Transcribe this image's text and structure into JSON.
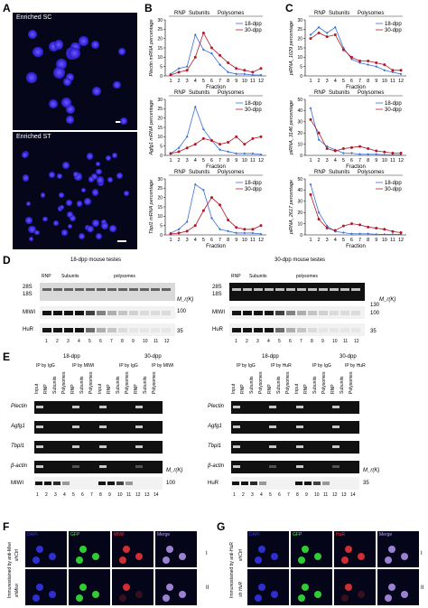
{
  "panels": {
    "A": "A",
    "B": "B",
    "C": "C",
    "D": "D",
    "E": "E",
    "F": "F",
    "G": "G"
  },
  "panelA": {
    "top_label": "Enriched SC",
    "bottom_label": "Enriched ST"
  },
  "legend": {
    "s1": "18-dpp",
    "s2": "30-dpp",
    "c1": "#3a6fd8",
    "c2": "#b0192a"
  },
  "header": {
    "rnp": "RNP",
    "subunits": "Subunits",
    "polysomes": "Polysomes"
  },
  "chart_data": [
    {
      "type": "line",
      "id": "plectin",
      "ylabel": "Plectin mRNA percentage",
      "xlabel": "Fraction",
      "categories": [
        1,
        2,
        3,
        4,
        5,
        6,
        7,
        8,
        9,
        10,
        11,
        12
      ],
      "ylim": [
        0,
        30
      ],
      "yticks": [
        0,
        5,
        10,
        15,
        20,
        25,
        30
      ],
      "series": [
        {
          "name": "18-dpp",
          "values": [
            1,
            4,
            5,
            22,
            14,
            12,
            6,
            2,
            1,
            1,
            0.5,
            0.5
          ]
        },
        {
          "name": "30-dpp",
          "values": [
            0.5,
            2,
            3,
            10,
            23,
            15,
            11,
            7,
            4,
            3,
            2,
            4
          ]
        }
      ]
    },
    {
      "type": "line",
      "id": "agfg1",
      "ylabel": "Agfg1 mRNA percentage",
      "xlabel": "Fraction",
      "categories": [
        1,
        2,
        3,
        4,
        5,
        6,
        7,
        8,
        9,
        10,
        11,
        12
      ],
      "ylim": [
        0,
        30
      ],
      "yticks": [
        0,
        5,
        10,
        15,
        20,
        25,
        30
      ],
      "series": [
        {
          "name": "18-dpp",
          "values": [
            1,
            4,
            10,
            26,
            14,
            8,
            3,
            2,
            1,
            1,
            1,
            0.5
          ]
        },
        {
          "name": "30-dpp",
          "values": [
            1,
            2,
            4,
            6,
            9,
            8,
            6,
            7,
            10,
            6,
            9,
            10
          ]
        }
      ]
    },
    {
      "type": "line",
      "id": "tbpl1",
      "ylabel": "Tbpl1 mRNA percentage",
      "xlabel": "Fraction",
      "categories": [
        1,
        2,
        3,
        4,
        5,
        6,
        7,
        8,
        9,
        10,
        11,
        12
      ],
      "ylim": [
        0,
        30
      ],
      "yticks": [
        0,
        5,
        10,
        15,
        20,
        25,
        30
      ],
      "series": [
        {
          "name": "18-dpp",
          "values": [
            1,
            3,
            7,
            27,
            24,
            9,
            3,
            2,
            1,
            1,
            1,
            0.5
          ]
        },
        {
          "name": "30-dpp",
          "values": [
            0.5,
            1,
            2,
            5,
            13,
            20,
            16,
            8,
            4,
            3,
            3,
            5
          ]
        }
      ]
    },
    {
      "type": "line",
      "id": "pirna1029",
      "ylabel": "piRNA_1029 percentage",
      "xlabel": "Fraction",
      "categories": [
        1,
        2,
        3,
        4,
        5,
        6,
        7,
        8,
        9,
        10,
        11,
        12
      ],
      "ylim": [
        0,
        30
      ],
      "yticks": [
        0,
        5,
        10,
        15,
        20,
        25,
        30
      ],
      "series": [
        {
          "name": "18-dpp",
          "values": [
            22,
            26,
            23,
            26,
            15,
            9,
            7,
            6,
            5,
            3,
            2,
            1
          ]
        },
        {
          "name": "30-dpp",
          "values": [
            20,
            23,
            21,
            22,
            14,
            10,
            8,
            8,
            7,
            6,
            3,
            3
          ]
        }
      ]
    },
    {
      "type": "line",
      "id": "pirna3146",
      "ylabel": "piRNA_3146 percentage",
      "xlabel": "Fraction",
      "categories": [
        1,
        2,
        3,
        4,
        5,
        6,
        7,
        8,
        9,
        10,
        11,
        12
      ],
      "ylim": [
        0,
        50
      ],
      "yticks": [
        0,
        10,
        20,
        30,
        40,
        50
      ],
      "series": [
        {
          "name": "18-dpp",
          "values": [
            42,
            14,
            8,
            5,
            2,
            2,
            1,
            1,
            1,
            0.5,
            0.5,
            0.5
          ]
        },
        {
          "name": "30-dpp",
          "values": [
            32,
            20,
            6,
            4,
            6,
            7,
            8,
            6,
            4,
            3,
            2,
            2
          ]
        }
      ]
    },
    {
      "type": "line",
      "id": "pirna2617",
      "ylabel": "piRNA_2617 percentage",
      "xlabel": "Fraction",
      "categories": [
        1,
        2,
        3,
        4,
        5,
        6,
        7,
        8,
        9,
        10,
        11,
        12
      ],
      "ylim": [
        0,
        50
      ],
      "yticks": [
        0,
        10,
        20,
        30,
        40,
        50
      ],
      "series": [
        {
          "name": "18-dpp",
          "values": [
            45,
            20,
            8,
            3,
            2,
            1,
            1,
            1,
            0.5,
            0.5,
            0.5,
            0.5
          ]
        },
        {
          "name": "30-dpp",
          "values": [
            36,
            14,
            6,
            4,
            8,
            10,
            9,
            7,
            6,
            5,
            3,
            2
          ]
        }
      ]
    }
  ],
  "panelD": {
    "left_title": "18-dpp mouse testes",
    "right_title": "30-dpp mouse testes",
    "rnp": "RNP",
    "subunits": "Subunits",
    "polysomes": "polysomes",
    "r28s": "28S",
    "r18s": "18S",
    "mk": "M_r(K)",
    "row_miwi": "MIWI",
    "row_hur": "HuR",
    "mw130": "130",
    "mw100": "100",
    "mw35": "35",
    "lanes": [
      "1",
      "2",
      "3",
      "4",
      "5",
      "6",
      "7",
      "8",
      "9",
      "10",
      "11",
      "12"
    ]
  },
  "panelE": {
    "left": {
      "age1": "18-dpp",
      "age2": "30-dpp",
      "ip1": "IP by IgG",
      "ip2": "IP by MIWI",
      "ip3": "IP by IgG",
      "ip4": "IP by MIWI",
      "row_ab": "MIWI"
    },
    "right": {
      "age1": "18-dpp",
      "age2": "30-dpp",
      "ip1": "IP by IgG",
      "ip2": "IP by HuR",
      "ip3": "IP by IgG",
      "ip4": "IP by HuR",
      "row_ab": "HuR"
    },
    "cols": [
      "Input",
      "RNP",
      "Subunits",
      "Polysomes",
      "RNP",
      "Subunits",
      "Polysomes",
      "Input",
      "RNP",
      "Subunits",
      "Polysomes",
      "RNP",
      "Subunits",
      "Polysomes"
    ],
    "rows": [
      "Plectin",
      "Agfg1",
      "Tbpl1",
      "β-actin"
    ],
    "mk": "M_r(K)",
    "mw100": "100",
    "mw35": "35",
    "lanes": [
      "1",
      "2",
      "3",
      "4",
      "5",
      "6",
      "7",
      "8",
      "9",
      "10",
      "11",
      "12",
      "13",
      "14"
    ]
  },
  "panelF": {
    "side": "Immunostained by anti-Miwi",
    "headers": [
      "DAPI",
      "GFP",
      "MIWI",
      "Merge"
    ],
    "row1": "shCtrl",
    "row2": "shMiwi",
    "roman1": "I",
    "roman2": "II"
  },
  "panelG": {
    "side": "Immunostained by anti-HuR",
    "headers": [
      "DAPI",
      "GFP",
      "HuR",
      "Merge"
    ],
    "row1": "shCtrl",
    "row2": "sh HuR",
    "roman1": "I",
    "roman2": "II"
  }
}
